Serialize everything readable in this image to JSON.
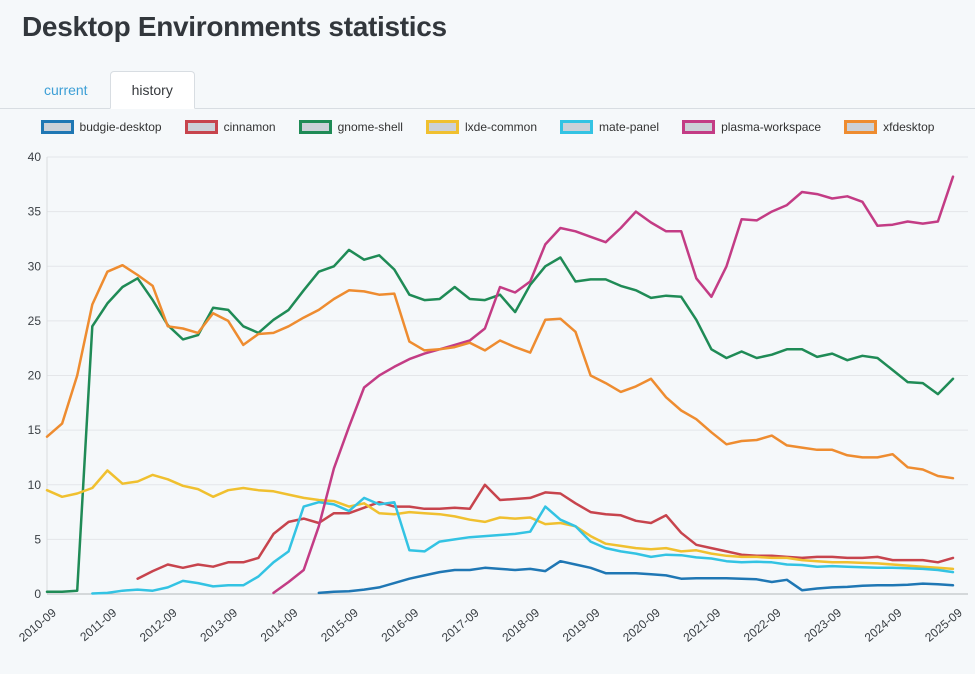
{
  "page": {
    "title": "Desktop Environments statistics"
  },
  "tabs": [
    {
      "label": "current",
      "active": false
    },
    {
      "label": "history",
      "active": true
    }
  ],
  "theme": {
    "page_bg": "#f5f8fa",
    "tab_link_color": "#3d9fd6",
    "active_tab_text": "#36393d",
    "grid_color": "#e4e6e9",
    "axis_line_color": "#b3b7ba",
    "left_axis_color": "#d9dcde",
    "tick_text_color": "#3a3f44",
    "legend_box_fill": "#ccd1d8"
  },
  "chart_data": {
    "type": "line",
    "title": "",
    "xlabel": "",
    "ylabel": "",
    "ylim": [
      0,
      40
    ],
    "ytick_step": 5,
    "grid": "horizontal-only",
    "legend_position": "top",
    "x_tick_every": 4,
    "categories": [
      "2010-09",
      "2010-12",
      "2011-03",
      "2011-06",
      "2011-09",
      "2011-12",
      "2012-03",
      "2012-06",
      "2012-09",
      "2012-12",
      "2013-03",
      "2013-06",
      "2013-09",
      "2013-12",
      "2014-03",
      "2014-06",
      "2014-09",
      "2014-12",
      "2015-03",
      "2015-06",
      "2015-09",
      "2015-12",
      "2016-03",
      "2016-06",
      "2016-09",
      "2016-12",
      "2017-03",
      "2017-06",
      "2017-09",
      "2017-12",
      "2018-03",
      "2018-06",
      "2018-09",
      "2018-12",
      "2019-03",
      "2019-06",
      "2019-09",
      "2019-12",
      "2020-03",
      "2020-06",
      "2020-09",
      "2020-12",
      "2021-03",
      "2021-06",
      "2021-09",
      "2021-12",
      "2022-03",
      "2022-06",
      "2022-09",
      "2022-12",
      "2023-03",
      "2023-06",
      "2023-09",
      "2023-12",
      "2024-03",
      "2024-06",
      "2024-09",
      "2024-12",
      "2025-03",
      "2025-06",
      "2025-09"
    ],
    "series": [
      {
        "name": "budgie-desktop",
        "color": "#1f77b4",
        "values": [
          null,
          null,
          null,
          null,
          null,
          null,
          null,
          null,
          null,
          null,
          null,
          null,
          null,
          null,
          null,
          null,
          null,
          null,
          0.1,
          0.2,
          0.25,
          0.4,
          0.6,
          1.0,
          1.4,
          1.7,
          2.0,
          2.2,
          2.2,
          2.4,
          2.3,
          2.2,
          2.3,
          2.1,
          3.0,
          2.7,
          2.4,
          1.9,
          1.9,
          1.9,
          1.8,
          1.7,
          1.4,
          1.45,
          1.45,
          1.45,
          1.4,
          1.35,
          1.1,
          1.3,
          0.35,
          0.5,
          0.6,
          0.65,
          0.75,
          0.8,
          0.8,
          0.85,
          0.95,
          0.9,
          0.8
        ]
      },
      {
        "name": "cinnamon",
        "color": "#c7444d",
        "values": [
          null,
          null,
          null,
          null,
          null,
          null,
          1.4,
          2.1,
          2.7,
          2.4,
          2.7,
          2.5,
          2.9,
          2.9,
          3.3,
          5.5,
          6.6,
          6.9,
          6.5,
          7.4,
          7.4,
          7.9,
          8.4,
          8.0,
          8.0,
          7.8,
          7.8,
          7.9,
          7.8,
          10.0,
          8.6,
          8.7,
          8.8,
          9.3,
          9.2,
          8.3,
          7.5,
          7.3,
          7.2,
          6.7,
          6.5,
          7.2,
          5.6,
          4.5,
          4.2,
          3.9,
          3.6,
          3.5,
          3.5,
          3.4,
          3.3,
          3.4,
          3.4,
          3.3,
          3.3,
          3.4,
          3.1,
          3.1,
          3.1,
          2.9,
          3.3
        ]
      },
      {
        "name": "gnome-shell",
        "color": "#1f8b56",
        "values": [
          0.2,
          0.2,
          0.3,
          24.5,
          26.6,
          28.1,
          28.9,
          26.9,
          24.6,
          23.3,
          23.7,
          26.2,
          26.0,
          24.5,
          23.9,
          25.1,
          26.0,
          27.8,
          29.5,
          30.0,
          31.5,
          30.6,
          31.0,
          29.7,
          27.4,
          26.9,
          27.0,
          28.1,
          27.0,
          26.9,
          27.4,
          25.8,
          28.3,
          30.0,
          30.8,
          28.6,
          28.8,
          28.8,
          28.2,
          27.8,
          27.1,
          27.3,
          27.2,
          25.1,
          22.4,
          21.6,
          22.2,
          21.6,
          21.9,
          22.4,
          22.4,
          21.7,
          22.0,
          21.4,
          21.8,
          21.6,
          20.5,
          19.4,
          19.3,
          18.3,
          19.7
        ]
      },
      {
        "name": "lxde-common",
        "color": "#f0c02f",
        "values": [
          9.5,
          8.9,
          9.2,
          9.7,
          11.3,
          10.1,
          10.3,
          10.9,
          10.5,
          9.9,
          9.6,
          8.9,
          9.5,
          9.7,
          9.5,
          9.4,
          9.1,
          8.8,
          8.6,
          8.5,
          8.0,
          8.3,
          7.4,
          7.3,
          7.5,
          7.4,
          7.3,
          7.1,
          6.8,
          6.6,
          7.0,
          6.9,
          7.0,
          6.4,
          6.5,
          6.2,
          5.3,
          4.6,
          4.4,
          4.2,
          4.1,
          4.2,
          3.9,
          4.0,
          3.7,
          3.5,
          3.4,
          3.4,
          3.3,
          3.3,
          3.1,
          3.0,
          2.9,
          2.9,
          2.85,
          2.8,
          2.7,
          2.6,
          2.5,
          2.4,
          2.3
        ]
      },
      {
        "name": "mate-panel",
        "color": "#33c3e3",
        "values": [
          null,
          null,
          null,
          0.05,
          0.1,
          0.3,
          0.4,
          0.3,
          0.6,
          1.2,
          1.0,
          0.7,
          0.8,
          0.8,
          1.6,
          2.9,
          3.9,
          8.0,
          8.4,
          8.2,
          7.6,
          8.8,
          8.2,
          8.4,
          4.0,
          3.9,
          4.8,
          5.0,
          5.2,
          5.3,
          5.4,
          5.5,
          5.7,
          8.0,
          6.8,
          6.2,
          4.8,
          4.2,
          3.9,
          3.7,
          3.4,
          3.6,
          3.55,
          3.35,
          3.25,
          3.0,
          2.9,
          2.95,
          2.9,
          2.7,
          2.65,
          2.5,
          2.55,
          2.5,
          2.45,
          2.4,
          2.4,
          2.35,
          2.3,
          2.2,
          2.0
        ]
      },
      {
        "name": "plasma-workspace",
        "color": "#c33c85",
        "values": [
          null,
          null,
          null,
          null,
          null,
          null,
          null,
          null,
          null,
          null,
          null,
          null,
          null,
          null,
          null,
          0.1,
          1.1,
          2.2,
          6.2,
          11.5,
          15.3,
          18.9,
          20.0,
          20.8,
          21.5,
          22.0,
          22.4,
          22.8,
          23.2,
          24.3,
          28.1,
          27.6,
          28.6,
          32.0,
          33.5,
          33.2,
          32.7,
          32.2,
          33.5,
          35.0,
          34.0,
          33.2,
          33.2,
          28.9,
          27.2,
          30.0,
          34.3,
          34.2,
          35.0,
          35.6,
          36.8,
          36.6,
          36.2,
          36.4,
          35.9,
          33.7,
          33.8,
          34.1,
          33.9,
          34.1,
          38.2
        ]
      },
      {
        "name": "xfdesktop",
        "color": "#ee8c30",
        "values": [
          14.4,
          15.6,
          20.0,
          26.5,
          29.5,
          30.1,
          29.2,
          28.2,
          24.5,
          24.3,
          23.9,
          25.7,
          25.0,
          22.8,
          23.8,
          23.9,
          24.5,
          25.3,
          26.0,
          27.0,
          27.8,
          27.7,
          27.4,
          27.5,
          23.1,
          22.3,
          22.4,
          22.6,
          23.0,
          22.3,
          23.2,
          22.6,
          22.1,
          25.1,
          25.2,
          24.0,
          20.0,
          19.3,
          18.5,
          19.0,
          19.7,
          18.0,
          16.8,
          16.0,
          14.8,
          13.7,
          14.0,
          14.1,
          14.5,
          13.6,
          13.4,
          13.2,
          13.2,
          12.7,
          12.5,
          12.5,
          12.8,
          11.6,
          11.4,
          10.8,
          10.6
        ]
      }
    ]
  }
}
